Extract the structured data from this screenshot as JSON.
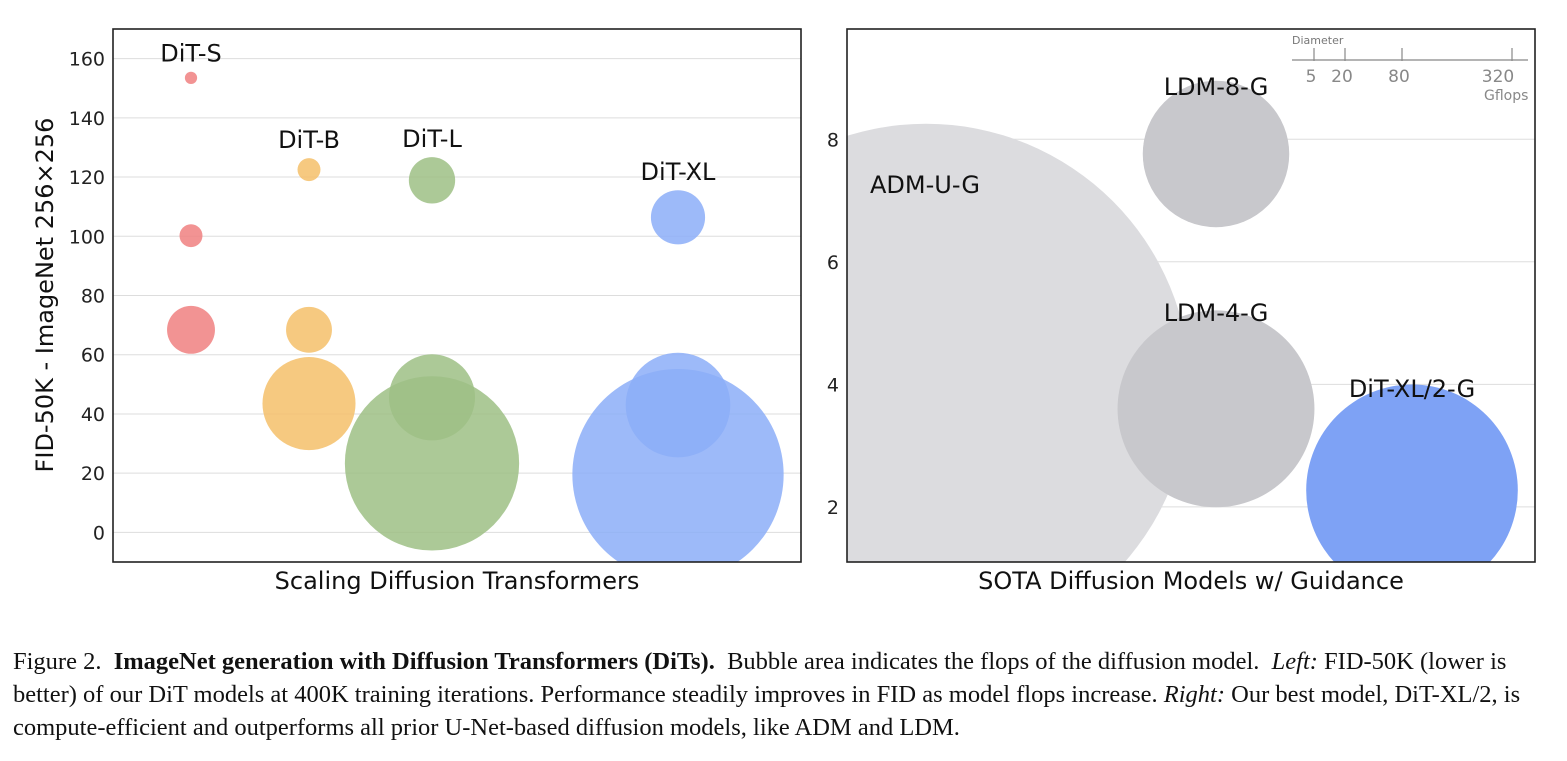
{
  "chart_data": [
    {
      "type": "scatter",
      "subtype": "bubble",
      "xlabel": "Scaling Diffusion Transformers",
      "ylabel": "FID-50K - ImageNet 256×256",
      "ylim": [
        -10,
        170
      ],
      "yticks": [
        0,
        20,
        40,
        60,
        80,
        100,
        120,
        140,
        160
      ],
      "grid": true,
      "series": [
        {
          "name": "DiT-S",
          "label": "DiT-S",
          "color": "#f08080",
          "x": 1,
          "points": [
            {
              "y": 153.5,
              "gflops": 0.4
            },
            {
              "y": 100.2,
              "gflops": 1.4
            },
            {
              "y": 68.4,
              "gflops": 6.1
            }
          ]
        },
        {
          "name": "DiT-B",
          "label": "DiT-B",
          "color": "#f5c06a",
          "x": 2,
          "points": [
            {
              "y": 122.5,
              "gflops": 1.4
            },
            {
              "y": 68.4,
              "gflops": 5.6
            },
            {
              "y": 43.5,
              "gflops": 23.0
            }
          ]
        },
        {
          "name": "DiT-L",
          "label": "DiT-L",
          "color": "#9dbf85",
          "x": 3,
          "points": [
            {
              "y": 118.9,
              "gflops": 5.7
            },
            {
              "y": 45.6,
              "gflops": 19.7
            },
            {
              "y": 23.3,
              "gflops": 80.7
            }
          ]
        },
        {
          "name": "DiT-XL",
          "label": "DiT-XL",
          "color": "#8caef8",
          "x": 5,
          "points": [
            {
              "y": 106.4,
              "gflops": 7.8
            },
            {
              "y": 43.0,
              "gflops": 29.1
            },
            {
              "y": 19.5,
              "gflops": 118.6
            }
          ]
        }
      ]
    },
    {
      "type": "scatter",
      "subtype": "bubble",
      "xlabel": "SOTA Diffusion Models w/ Guidance",
      "ylabel": "",
      "ylim": [
        1.1,
        9.8
      ],
      "yticks": [
        2,
        4,
        6,
        8
      ],
      "grid": true,
      "legend": {
        "title": "Diameter",
        "unit": "Gflops",
        "ticks": [
          5,
          20,
          80,
          320
        ],
        "placement": "top-right"
      },
      "series": [
        {
          "name": "ADM-U-G",
          "label": "ADM-U-G",
          "color": "#dcdcdf",
          "x": 1,
          "y": 3.94,
          "gflops": 742
        },
        {
          "name": "LDM-8-G",
          "label": "LDM-8-G",
          "color": "#c8c8cc",
          "x": 2.5,
          "y": 7.76,
          "gflops": 57
        },
        {
          "name": "LDM-4-G",
          "label": "LDM-4-G",
          "color": "#c8c8cc",
          "x": 2.5,
          "y": 3.6,
          "gflops": 103
        },
        {
          "name": "DiT-XL/2-G",
          "label": "DiT-XL/2-G",
          "color": "#7ea2f5",
          "x": 3.5,
          "y": 2.27,
          "gflops": 119
        }
      ]
    }
  ],
  "caption": {
    "prefix": "Figure 2.",
    "title": "ImageNet generation with Diffusion Transformers (DiTs).",
    "sentence1": "Bubble area indicates the flops of the diffusion model.",
    "left_label": "Left:",
    "left_text": "FID-50K (lower is better) of our DiT models at 400K training iterations. Performance steadily improves in FID as model flops increase.",
    "right_label": "Right:",
    "right_text": "Our best model, DiT-XL/2, is compute-efficient and outperforms all prior U-Net-based diffusion models, like ADM and LDM."
  }
}
